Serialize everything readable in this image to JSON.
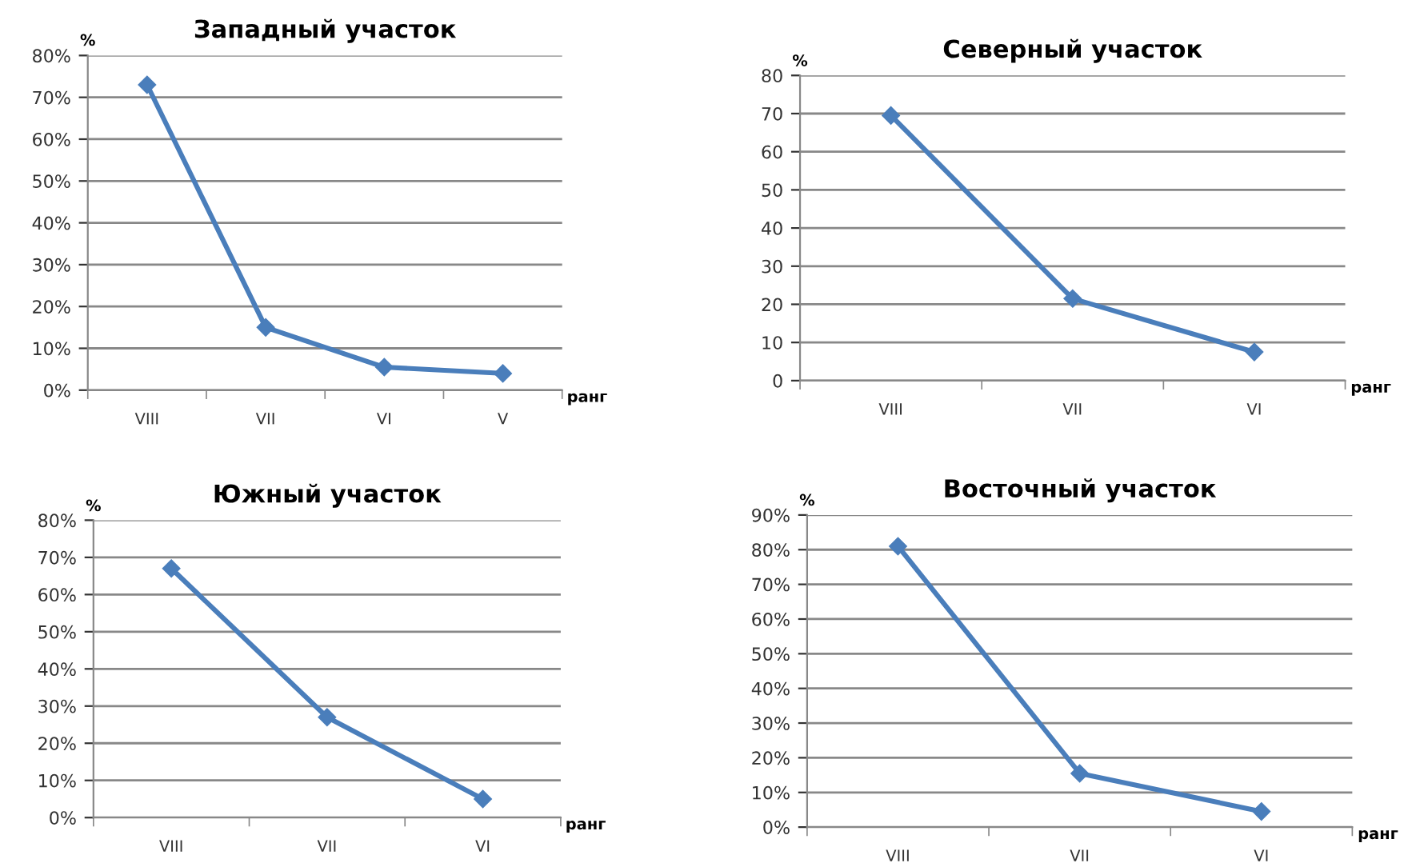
{
  "chart_data": [
    {
      "type": "line",
      "title": "Западный участок",
      "xlabel": "ранг",
      "ylabel": "%",
      "categories": [
        "VIII",
        "VII",
        "VI",
        "V"
      ],
      "series": [
        {
          "color": "#4a7ebb",
          "values": [
            73,
            15,
            5.5,
            4
          ]
        }
      ],
      "ylim": [
        0,
        80
      ],
      "yticks": [
        {
          "value": 0,
          "label": "0%"
        },
        {
          "value": 10,
          "label": "10%"
        },
        {
          "value": 20,
          "label": "20%"
        },
        {
          "value": 30,
          "label": "30%"
        },
        {
          "value": 40,
          "label": "40%"
        },
        {
          "value": 50,
          "label": "50%"
        },
        {
          "value": 60,
          "label": "60%"
        },
        {
          "value": 70,
          "label": "70%"
        },
        {
          "value": 80,
          "label": "80%"
        }
      ],
      "grid": "y",
      "legend": false,
      "marker": "diamond",
      "line_style": "solid"
    },
    {
      "type": "line",
      "title": "Северный участок",
      "xlabel": "ранг",
      "ylabel": "%",
      "categories": [
        "VIII",
        "VII",
        "VI"
      ],
      "series": [
        {
          "color": "#4a7ebb",
          "values": [
            69.5,
            21.5,
            7.5
          ]
        }
      ],
      "ylim": [
        0,
        80
      ],
      "yticks": [
        0,
        10,
        20,
        30,
        40,
        50,
        60,
        70,
        80
      ],
      "grid": "y",
      "legend": false,
      "marker": "diamond",
      "line_style": "solid"
    },
    {
      "type": "line",
      "title": "Южный участок",
      "xlabel": "ранг",
      "ylabel": "%",
      "categories": [
        "VIII",
        "VII",
        "VI"
      ],
      "series": [
        {
          "color": "#4a7ebb",
          "values": [
            67,
            27,
            5
          ]
        }
      ],
      "ylim": [
        0,
        80
      ],
      "yticks": [
        {
          "value": 0,
          "label": "0%"
        },
        {
          "value": 10,
          "label": "10%"
        },
        {
          "value": 20,
          "label": "20%"
        },
        {
          "value": 30,
          "label": "30%"
        },
        {
          "value": 40,
          "label": "40%"
        },
        {
          "value": 50,
          "label": "50%"
        },
        {
          "value": 60,
          "label": "60%"
        },
        {
          "value": 70,
          "label": "70%"
        },
        {
          "value": 80,
          "label": "80%"
        }
      ],
      "grid": "y",
      "legend": false,
      "marker": "diamond",
      "line_style": "solid"
    },
    {
      "type": "line",
      "title": "Восточный участок",
      "xlabel": "ранг",
      "ylabel": "%",
      "categories": [
        "VIII",
        "VII",
        "VI"
      ],
      "series": [
        {
          "color": "#4a7ebb",
          "values": [
            81,
            15.5,
            4.5
          ]
        }
      ],
      "ylim": [
        0,
        90
      ],
      "yticks": [
        {
          "value": 0,
          "label": "0%"
        },
        {
          "value": 10,
          "label": "10%"
        },
        {
          "value": 20,
          "label": "20%"
        },
        {
          "value": 30,
          "label": "30%"
        },
        {
          "value": 40,
          "label": "40%"
        },
        {
          "value": 50,
          "label": "50%"
        },
        {
          "value": 60,
          "label": "60%"
        },
        {
          "value": 70,
          "label": "70%"
        },
        {
          "value": 80,
          "label": "80%"
        },
        {
          "value": 90,
          "label": "90%"
        }
      ],
      "grid": "y",
      "legend": false,
      "marker": "diamond",
      "line_style": "solid"
    }
  ]
}
